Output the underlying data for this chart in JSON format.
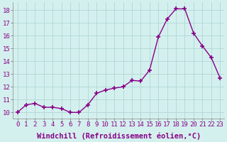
{
  "x": [
    0,
    1,
    2,
    3,
    4,
    5,
    6,
    7,
    8,
    9,
    10,
    11,
    12,
    13,
    14,
    15,
    16,
    17,
    18,
    19,
    20,
    21,
    22,
    23
  ],
  "y": [
    10.0,
    10.6,
    10.7,
    10.4,
    10.4,
    10.3,
    10.0,
    10.0,
    10.6,
    11.5,
    11.75,
    11.9,
    12.0,
    12.5,
    12.45,
    13.3,
    15.9,
    17.3,
    18.1,
    18.1,
    16.2,
    15.2,
    14.3,
    12.7
  ],
  "line_color": "#880088",
  "marker": "+",
  "marker_size": 5,
  "marker_lw": 1.2,
  "bg_color": "#d4f0ee",
  "grid_color": "#b0d8d4",
  "xlabel": "Windchill (Refroidissement éolien,°C)",
  "xlabel_fontsize": 7.5,
  "xlim": [
    -0.5,
    23.5
  ],
  "ylim": [
    9.5,
    18.6
  ],
  "yticks": [
    10,
    11,
    12,
    13,
    14,
    15,
    16,
    17,
    18
  ],
  "xtick_labels": [
    "0",
    "1",
    "2",
    "3",
    "4",
    "5",
    "6",
    "7",
    "8",
    "9",
    "10",
    "11",
    "12",
    "13",
    "14",
    "15",
    "16",
    "17",
    "18",
    "19",
    "20",
    "21",
    "22",
    "23"
  ],
  "tick_fontsize": 6.5,
  "line_width": 1.0,
  "label_color": "#880088"
}
